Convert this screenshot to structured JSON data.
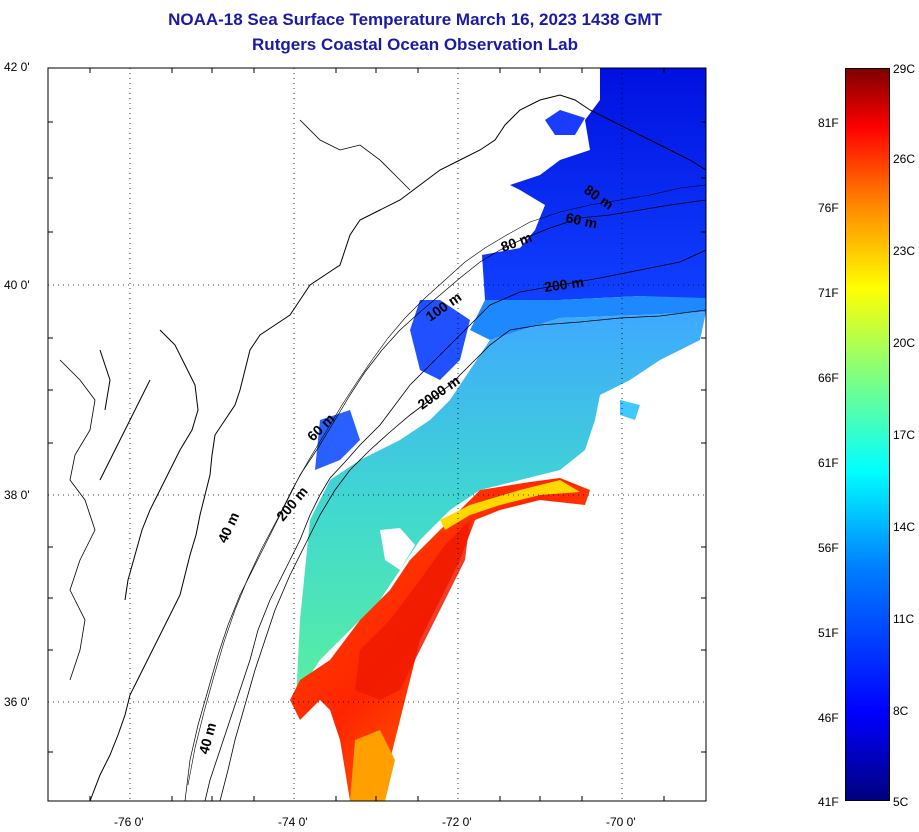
{
  "title": {
    "line1": "NOAA-18 Sea Surface Temperature March 16, 2023 1438 GMT",
    "line2": "Rutgers Coastal Ocean Observation Lab"
  },
  "map": {
    "lat_labels": [
      "42 0'",
      "40 0'",
      "38 0'",
      "36 0'"
    ],
    "lon_labels": [
      "-76 0'",
      "-74 0'",
      "-72 0'",
      "-70 0'"
    ],
    "contour_labels": [
      "80 m",
      "60 m",
      "80 m",
      "200 m",
      "100 m",
      "2000 m",
      "60 m",
      "200 m",
      "40 m",
      "40 m"
    ]
  },
  "colorbar": {
    "fahrenheit": [
      "81F",
      "76F",
      "71F",
      "66F",
      "61F",
      "56F",
      "51F",
      "46F",
      "41F"
    ],
    "celsius": [
      "29C",
      "26C",
      "23C",
      "20C",
      "17C",
      "14C",
      "11C",
      "8C",
      "5C"
    ],
    "colors": {
      "cold": "#00007f",
      "blue": "#0000ff",
      "cyan": "#00ffff",
      "green": "#7fff7f",
      "yellow": "#ffff00",
      "orange": "#ff8000",
      "red": "#ff0000",
      "hot": "#7f0000"
    }
  }
}
